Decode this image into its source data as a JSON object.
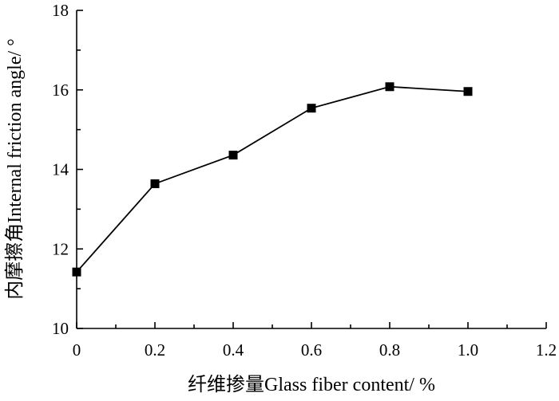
{
  "chart_data": {
    "type": "line",
    "title": "",
    "xlabel": "纤维掺量Glass fiber content/ %",
    "ylabel": "内摩擦角Internal friction angle/ °",
    "xlim": [
      0,
      1.2
    ],
    "ylim": [
      10,
      18
    ],
    "xticks": [
      0,
      0.2,
      0.4,
      0.6,
      0.8,
      1.0,
      1.2
    ],
    "xtick_labels": [
      "0",
      "0.2",
      "0.4",
      "0.6",
      "0.8",
      "1.0",
      "1.2"
    ],
    "yticks": [
      10,
      12,
      14,
      16,
      18
    ],
    "ytick_labels": [
      "10",
      "12",
      "14",
      "16",
      "18"
    ],
    "grid": false,
    "series": [
      {
        "marker": "square",
        "color": "#000000",
        "x": [
          0,
          0.2,
          0.4,
          0.6,
          0.8,
          1.0
        ],
        "y": [
          11.42,
          13.64,
          14.36,
          15.54,
          16.08,
          15.96
        ]
      }
    ]
  }
}
